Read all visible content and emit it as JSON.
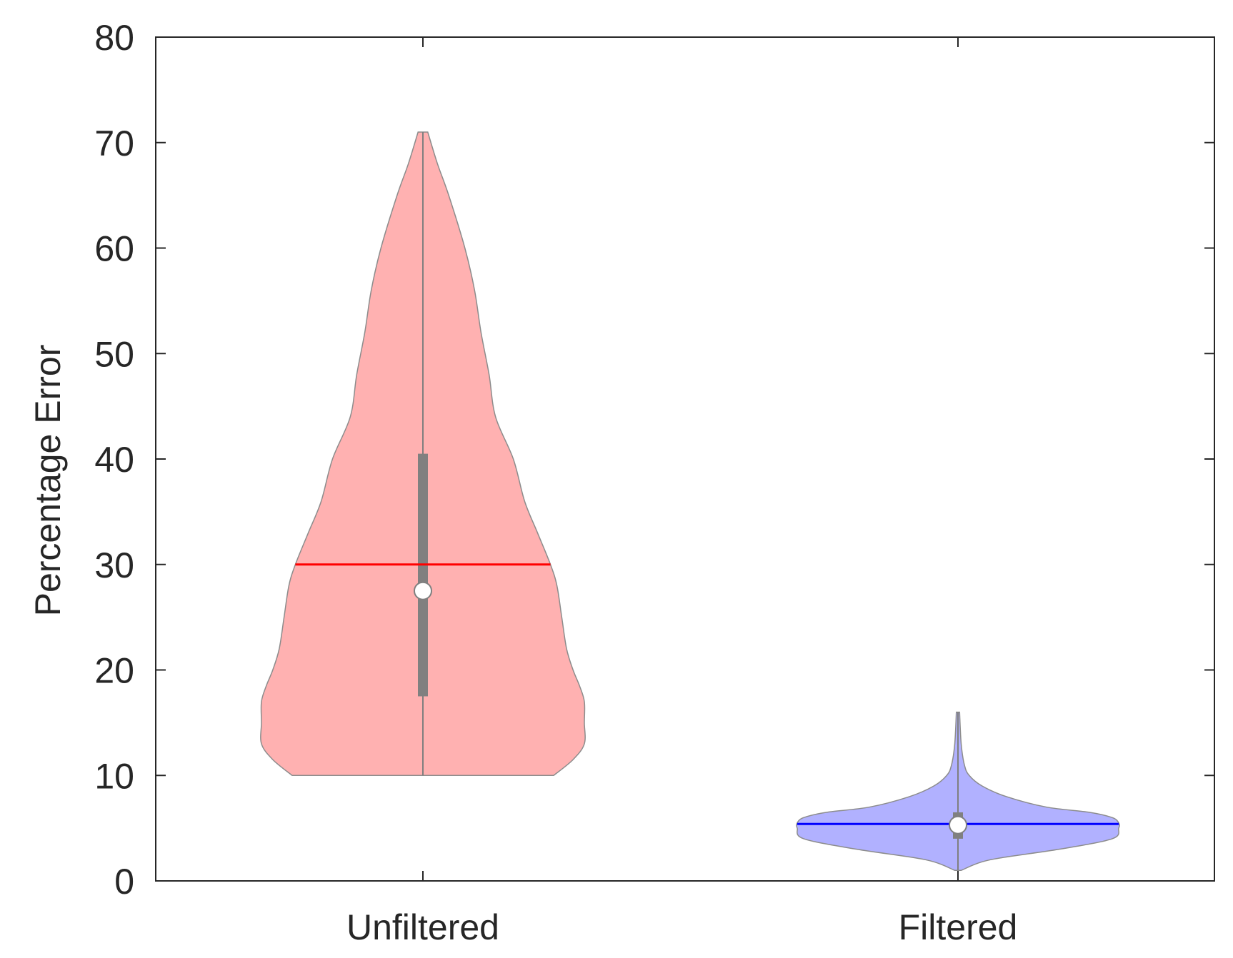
{
  "chart_data": {
    "type": "violin",
    "title": "",
    "xlabel": "",
    "ylabel": "Percentage Error",
    "ylim": [
      0,
      80
    ],
    "yticks": [
      0,
      10,
      20,
      30,
      40,
      50,
      60,
      70,
      80
    ],
    "grid": false,
    "categories": [
      "Unfiltered",
      "Filtered"
    ],
    "series": [
      {
        "category": "Unfiltered",
        "fill_color": "#ffb1b1",
        "mean_color": "#ff0000",
        "min": 10,
        "max": 71,
        "median": 27.5,
        "q1": 17.5,
        "q3": 40.5,
        "mean": 30,
        "density": [
          [
            10,
            0.81
          ],
          [
            11.5,
            0.93
          ],
          [
            13,
            1.0
          ],
          [
            15,
            1.0
          ],
          [
            17,
            1.0
          ],
          [
            18.5,
            0.97
          ],
          [
            20,
            0.93
          ],
          [
            22,
            0.89
          ],
          [
            25,
            0.86
          ],
          [
            28,
            0.83
          ],
          [
            30,
            0.79
          ],
          [
            33,
            0.71
          ],
          [
            36,
            0.63
          ],
          [
            40,
            0.56
          ],
          [
            44,
            0.45
          ],
          [
            48,
            0.41
          ],
          [
            52,
            0.36
          ],
          [
            56,
            0.32
          ],
          [
            60,
            0.26
          ],
          [
            65,
            0.16
          ],
          [
            68,
            0.09
          ],
          [
            71,
            0.03
          ]
        ]
      },
      {
        "category": "Filtered",
        "fill_color": "#b1b1ff",
        "mean_color": "#0000ff",
        "min": 1,
        "max": 16,
        "median": 5.3,
        "q1": 4.0,
        "q3": 6.5,
        "mean": 5.4,
        "density": [
          [
            1,
            0.02
          ],
          [
            2,
            0.2
          ],
          [
            3,
            0.63
          ],
          [
            4,
            0.96
          ],
          [
            5,
            1.0
          ],
          [
            5.5,
            1.0
          ],
          [
            6,
            0.96
          ],
          [
            6.5,
            0.82
          ],
          [
            7,
            0.55
          ],
          [
            8,
            0.3
          ],
          [
            9,
            0.15
          ],
          [
            10,
            0.07
          ],
          [
            11,
            0.04
          ],
          [
            13,
            0.02
          ],
          [
            16,
            0.01
          ]
        ]
      }
    ]
  }
}
